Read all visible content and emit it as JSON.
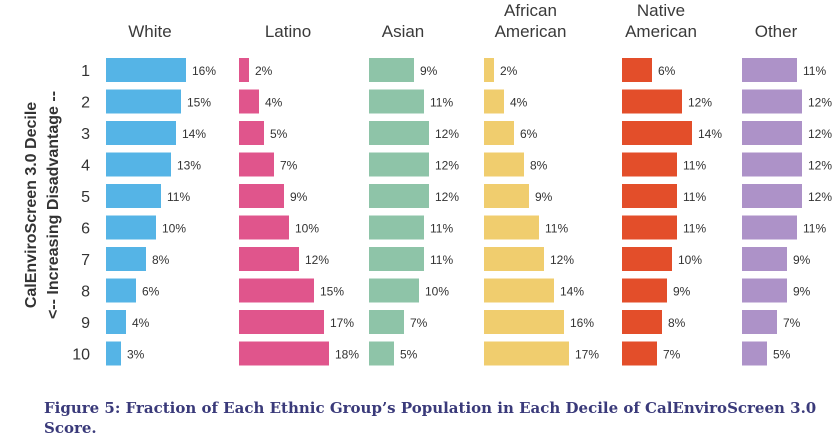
{
  "chart_data": {
    "type": "bar",
    "orientation": "horizontal",
    "layout": "small-multiples",
    "ylabel_line1": "CalEnviroScreen 3.0 Decile",
    "ylabel_line2": "<-- Increasing Disadvantage --",
    "categories": [
      "1",
      "2",
      "3",
      "4",
      "5",
      "6",
      "7",
      "8",
      "9",
      "10"
    ],
    "value_suffix": "%",
    "series": [
      {
        "name_lines": [
          "White"
        ],
        "color": "#55b4e6",
        "values": [
          16,
          15,
          14,
          13,
          11,
          10,
          8,
          6,
          4,
          3
        ]
      },
      {
        "name_lines": [
          "Latino"
        ],
        "color": "#e0558c",
        "values": [
          2,
          4,
          5,
          7,
          9,
          10,
          12,
          15,
          17,
          18
        ]
      },
      {
        "name_lines": [
          "Asian"
        ],
        "color": "#8ec4a8",
        "values": [
          9,
          11,
          12,
          12,
          12,
          11,
          11,
          10,
          7,
          5
        ]
      },
      {
        "name_lines": [
          "African",
          "American"
        ],
        "color": "#f0cd6e",
        "values": [
          2,
          4,
          6,
          8,
          9,
          11,
          12,
          14,
          16,
          17
        ]
      },
      {
        "name_lines": [
          "Native",
          "American"
        ],
        "color": "#e34e2a",
        "values": [
          6,
          12,
          14,
          11,
          11,
          11,
          10,
          9,
          8,
          7
        ]
      },
      {
        "name_lines": [
          "Other"
        ],
        "color": "#ad92c8",
        "values": [
          11,
          12,
          12,
          12,
          12,
          11,
          9,
          9,
          7,
          5
        ]
      }
    ]
  },
  "caption": "Figure 5: Fraction of Each Ethnic Group’s Population in Each Decile of CalEnviroScreen 3.0 Score."
}
